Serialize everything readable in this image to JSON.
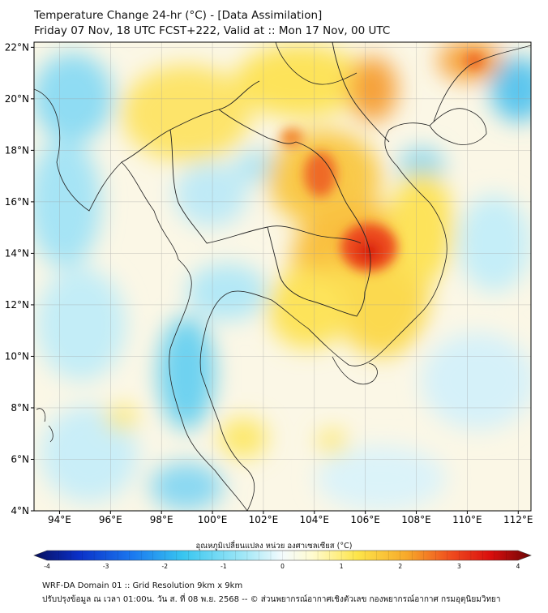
{
  "title_line1": "Temperature Change 24-hr (°C) - [Data Assimilation]",
  "title_line2": "Friday 07 Nov, 18 UTC FCST+222, Valid at :: Mon 17 Nov, 00 UTC",
  "map": {
    "lon_range": [
      93,
      112.5
    ],
    "lat_range": [
      4,
      22.2
    ],
    "lat_labels": [
      "22°N",
      "20°N",
      "18°N",
      "16°N",
      "14°N",
      "12°N",
      "10°N",
      "8°N",
      "6°N",
      "4°N"
    ],
    "lat_values": [
      22,
      20,
      18,
      16,
      14,
      12,
      10,
      8,
      6,
      4
    ],
    "lon_labels": [
      "94°E",
      "96°E",
      "98°E",
      "100°E",
      "102°E",
      "104°E",
      "106°E",
      "108°E",
      "110°E",
      "112°E"
    ],
    "lon_values": [
      94,
      96,
      98,
      100,
      102,
      104,
      106,
      108,
      110,
      112
    ],
    "gridlines": true
  },
  "colorbar": {
    "title": "อุณหภูมิเปลี่ยนแปลง หน่วย องศาเซลเซียส (°C)",
    "ticks": [
      "-4",
      "-3",
      "-2",
      "-1",
      "0",
      "1",
      "2",
      "3",
      "4"
    ],
    "tick_values": [
      -4,
      -3,
      -2,
      -1,
      0,
      1,
      2,
      3,
      4
    ],
    "range": [
      -4,
      4
    ],
    "colors": [
      "#08105e",
      "#0a30c8",
      "#1b7af0",
      "#38c6f0",
      "#9fe7f7",
      "#f4fbfd",
      "#fffbd0",
      "#fde54a",
      "#f7a92a",
      "#ef4b1e",
      "#d90d0d",
      "#6b0606"
    ]
  },
  "footer_line1": "WRF-DA Domain 01 :: Grid Resolution 9km x 9km",
  "footer_line2": "ปรับปรุงข้อมูล ณ เวลา 01:00น. วัน ส. ที่ 08 พ.ย. 2568 -- © ส่วนพยากรณ์อากาศเชิงตัวเลข กองพยากรณ์อากาศ กรมอุตุนิยมวิทยา"
}
